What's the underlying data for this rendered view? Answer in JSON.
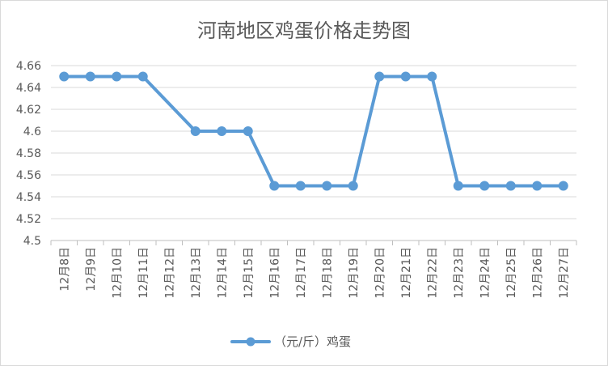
{
  "chart_data": {
    "type": "line",
    "title": "河南地区鸡蛋价格走势图",
    "xlabel": "",
    "ylabel": "",
    "categories": [
      "12月8日",
      "12月9日",
      "12月10日",
      "12月11日",
      "12月12日",
      "12月13日",
      "12月14日",
      "12月15日",
      "12月16日",
      "12月17日",
      "12月18日",
      "12月19日",
      "12月20日",
      "12月21日",
      "12月22日",
      "12月23日",
      "12月24日",
      "12月25日",
      "12月26日",
      "12月27日"
    ],
    "series": [
      {
        "name": "（元/斤）鸡蛋",
        "values": [
          4.65,
          4.65,
          4.65,
          4.65,
          null,
          4.6,
          4.6,
          4.6,
          4.55,
          4.55,
          4.55,
          4.55,
          4.65,
          4.65,
          4.65,
          4.55,
          4.55,
          4.55,
          4.55,
          4.55
        ],
        "color": "#5b9bd5"
      }
    ],
    "ylim": [
      4.5,
      4.66
    ],
    "yticks": [
      4.5,
      4.52,
      4.54,
      4.56,
      4.58,
      4.6,
      4.62,
      4.64,
      4.66
    ],
    "ytick_labels": [
      "4.5",
      "4.52",
      "4.54",
      "4.56",
      "4.58",
      "4.6",
      "4.62",
      "4.64",
      "4.66"
    ],
    "grid": true,
    "gap_mode": "connect",
    "legend_position": "bottom",
    "gridline_color": "#d9d9d9",
    "axis_color": "#bfbfbf"
  }
}
